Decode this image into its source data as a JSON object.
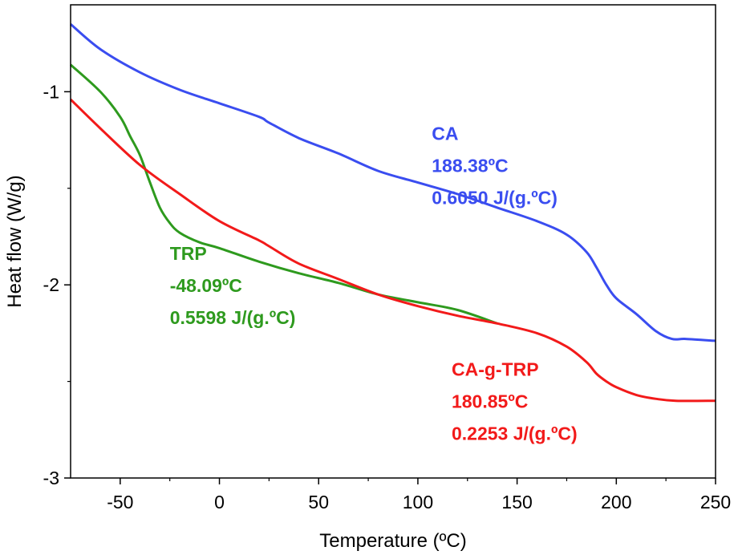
{
  "chart_data": {
    "type": "line",
    "xlabel": "Temperature (ºC)",
    "ylabel": "Heat flow (W/g)",
    "xlim": [
      -75,
      250
    ],
    "ylim": [
      -3,
      -0.55
    ],
    "xticks": [
      -50,
      0,
      50,
      100,
      150,
      200,
      250
    ],
    "xtick_labels": [
      "-50",
      "0",
      "50",
      "100",
      "150",
      "200",
      "250"
    ],
    "yticks": [
      -1,
      -2,
      -3
    ],
    "ytick_labels": [
      "-1",
      "-2",
      "-3"
    ],
    "grid": false,
    "series": [
      {
        "name": "CA",
        "color": "#3a4df0",
        "x": [
          -75,
          -60,
          -40,
          -20,
          0,
          20,
          25,
          40,
          60,
          80,
          100,
          120,
          140,
          160,
          175,
          185,
          190,
          195,
          200,
          210,
          220,
          228,
          235,
          250
        ],
        "y": [
          -0.65,
          -0.78,
          -0.9,
          -0.99,
          -1.06,
          -1.13,
          -1.16,
          -1.24,
          -1.32,
          -1.41,
          -1.47,
          -1.53,
          -1.6,
          -1.67,
          -1.74,
          -1.83,
          -1.91,
          -2.0,
          -2.07,
          -2.15,
          -2.24,
          -2.28,
          -2.28,
          -2.29
        ],
        "label_lines": [
          "CA",
          "188.38ºC",
          "0.6050 J/(g.ºC)"
        ]
      },
      {
        "name": "TRP",
        "color": "#2e9a1e",
        "x": [
          -75,
          -60,
          -50,
          -45,
          -40,
          -35,
          -30,
          -25,
          -20,
          -10,
          0,
          20,
          40,
          60,
          80,
          100,
          120,
          140
        ],
        "y": [
          -0.86,
          -1.0,
          -1.13,
          -1.23,
          -1.33,
          -1.47,
          -1.6,
          -1.68,
          -1.73,
          -1.78,
          -1.81,
          -1.88,
          -1.94,
          -1.99,
          -2.05,
          -2.09,
          -2.13,
          -2.2
        ],
        "label_lines": [
          "TRP",
          "-48.09ºC",
          "0.5598 J/(g.ºC)"
        ]
      },
      {
        "name": "CA-g-TRP",
        "color": "#f21a1a",
        "x": [
          -75,
          -60,
          -40,
          -20,
          0,
          20,
          25,
          40,
          60,
          80,
          100,
          120,
          140,
          160,
          175,
          185,
          190,
          195,
          200,
          210,
          220,
          230,
          250
        ],
        "y": [
          -1.04,
          -1.19,
          -1.38,
          -1.53,
          -1.67,
          -1.77,
          -1.8,
          -1.89,
          -1.97,
          -2.05,
          -2.11,
          -2.16,
          -2.2,
          -2.25,
          -2.32,
          -2.4,
          -2.46,
          -2.5,
          -2.53,
          -2.57,
          -2.59,
          -2.6,
          -2.6
        ],
        "label_lines": [
          "CA-g-TRP",
          "180.85ºC",
          "0.2253 J/(g.ºC)"
        ]
      }
    ]
  }
}
